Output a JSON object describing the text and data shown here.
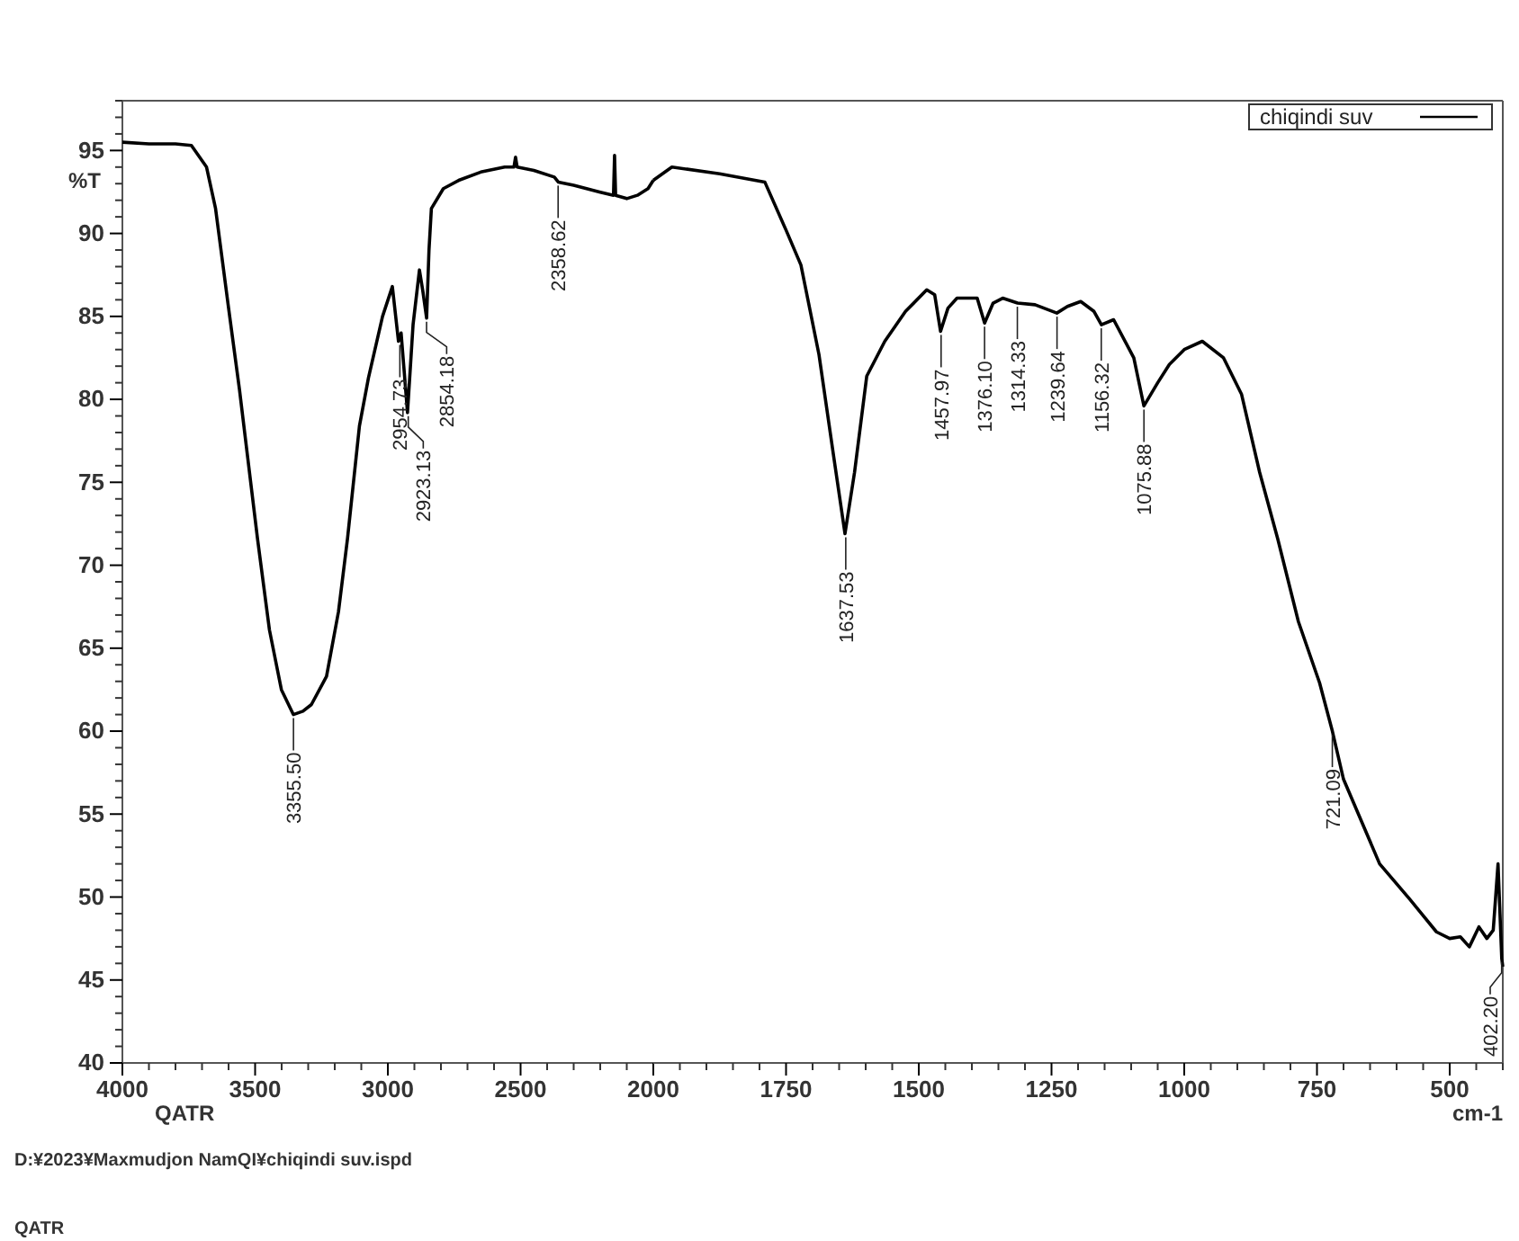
{
  "chart_data": [
    {
      "type": "line",
      "ylabel": "%T",
      "xlim": [
        4000,
        2000
      ],
      "xticks": [
        4000,
        3500,
        3000,
        2500,
        2000
      ],
      "ylim": [
        40,
        98
      ],
      "yticks": [
        40,
        45,
        50,
        55,
        60,
        65,
        70,
        75,
        80,
        85,
        90,
        95
      ],
      "grid": false,
      "marker": "none",
      "line_style": "solid",
      "series": [
        {
          "color": "#000000",
          "x": [
            4000,
            3900,
            3800,
            3740,
            3683,
            3649,
            3600,
            3559,
            3491,
            3446,
            3401,
            3356,
            3320,
            3288,
            3231,
            3186,
            3152,
            3107,
            3073,
            3020,
            2983,
            2960,
            2950,
            2940,
            2926,
            2905,
            2881,
            2868,
            2854,
            2845,
            2836,
            2791,
            2733,
            2650,
            2560,
            2525,
            2519,
            2513,
            2450,
            2373,
            2358,
            2300,
            2203,
            2150,
            2146,
            2142,
            2100,
            2060,
            2020,
            2000
          ],
          "values": [
            95.5,
            95.4,
            95.4,
            95.3,
            94.0,
            91.5,
            85.5,
            80.6,
            71.6,
            66.1,
            62.5,
            61.0,
            61.2,
            61.6,
            63.3,
            67.2,
            71.6,
            78.4,
            81.3,
            85.0,
            86.8,
            83.5,
            84.0,
            82.0,
            79.2,
            84.5,
            87.8,
            86.5,
            84.9,
            89.0,
            91.5,
            92.7,
            93.2,
            93.7,
            94.0,
            94.0,
            94.6,
            94.0,
            93.8,
            93.4,
            93.1,
            92.9,
            92.5,
            92.3,
            94.7,
            92.3,
            92.1,
            92.3,
            92.7,
            93.2
          ]
        }
      ],
      "annotations": [
        "QATR",
        "D:¥2023¥Maxmudjon  NamQI¥chiqindi suv.ispd",
        "QATR",
        {
          "text": "3355.50",
          "x": 3355.5,
          "y": 61.0
        },
        {
          "text": "2954.73",
          "x": 2954.73,
          "y": 83.5
        },
        {
          "text": "2923.13",
          "x": 2923.13,
          "y": 79.2
        },
        {
          "text": "2854.18",
          "x": 2854.18,
          "y": 84.9
        },
        {
          "text": "2358.62",
          "x": 2358.62,
          "y": 93.1
        }
      ]
    },
    {
      "type": "line",
      "xlabel": "cm-1",
      "xlim": [
        2000,
        400
      ],
      "xticks": [
        1750,
        1500,
        1250,
        1000,
        750,
        500
      ],
      "ylim": [
        40,
        98
      ],
      "tick_labels": "x",
      "grid": false,
      "legend": "top right",
      "marker": "none",
      "line_style": "solid",
      "series": [
        {
          "name": "chiqindi suv",
          "color": "#000000",
          "x": [
            2000,
            1965,
            1875,
            1790,
            1750,
            1722,
            1688,
            1660,
            1639,
            1621,
            1598,
            1564,
            1525,
            1485,
            1470,
            1459,
            1445,
            1428,
            1390,
            1376,
            1360,
            1342,
            1314,
            1281,
            1240,
            1220,
            1195,
            1170,
            1156,
            1133,
            1095,
            1076,
            1050,
            1028,
            1000,
            966,
            926,
            892,
            858,
            824,
            785,
            745,
            721,
            700,
            632,
            576,
            525,
            500,
            480,
            463,
            445,
            430,
            418,
            409,
            402,
            400
          ],
          "values": [
            93.2,
            94.0,
            93.6,
            93.1,
            90.2,
            88.1,
            82.7,
            76.5,
            71.9,
            75.6,
            81.4,
            83.5,
            85.3,
            86.6,
            86.3,
            84.1,
            85.5,
            86.1,
            86.1,
            84.6,
            85.8,
            86.1,
            85.8,
            85.7,
            85.2,
            85.6,
            85.9,
            85.3,
            84.5,
            84.8,
            82.5,
            79.6,
            81.0,
            82.1,
            83.0,
            83.5,
            82.5,
            80.3,
            75.6,
            71.6,
            66.6,
            62.9,
            60.0,
            57.1,
            52.0,
            49.9,
            47.9,
            47.5,
            47.6,
            47.0,
            48.2,
            47.5,
            48.0,
            52.0,
            46.3,
            45.8
          ]
        }
      ],
      "annotations": [
        {
          "text": "1637.53",
          "x": 1637.53,
          "y": 71.9
        },
        {
          "text": "1457.97",
          "x": 1457.97,
          "y": 84.1
        },
        {
          "text": "1376.10",
          "x": 1376.1,
          "y": 84.6
        },
        {
          "text": "1314.33",
          "x": 1314.33,
          "y": 85.8
        },
        {
          "text": "1239.64",
          "x": 1239.64,
          "y": 85.2
        },
        {
          "text": "1156.32",
          "x": 1156.32,
          "y": 84.5
        },
        {
          "text": "1075.88",
          "x": 1075.88,
          "y": 79.6
        },
        {
          "text": "721.09",
          "x": 721.09,
          "y": 60.0
        },
        {
          "text": "402.20",
          "x": 402.2,
          "y": 46.3
        }
      ]
    }
  ]
}
